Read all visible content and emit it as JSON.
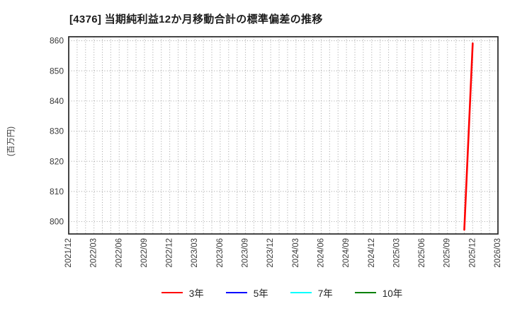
{
  "chart_data": {
    "type": "line",
    "title": "[4376]  当期純利益12か月移動合計の標準偏差の推移",
    "ylabel": "(百万円)",
    "xlim_months": [
      "2021/12",
      "2026/03"
    ],
    "x_tick_labels": [
      "2021/12",
      "2022/03",
      "2022/06",
      "2022/09",
      "2022/12",
      "2023/03",
      "2023/06",
      "2023/09",
      "2023/12",
      "2024/03",
      "2024/06",
      "2024/09",
      "2024/12",
      "2025/03",
      "2025/06",
      "2025/09",
      "2025/12",
      "2026/03"
    ],
    "y_ticks": [
      800,
      810,
      820,
      830,
      840,
      850,
      860
    ],
    "ylim": [
      795.9,
      861.3
    ],
    "grid": {
      "style": "dotted",
      "vertical_interval": "monthly",
      "horizontal_interval": 10,
      "color": "#a9a9a9"
    },
    "legend_position": "bottom",
    "series": [
      {
        "name": "3年",
        "color": "#ff0000",
        "points": [
          {
            "x": "2025/11",
            "y": 797.3
          },
          {
            "x": "2025/12",
            "y": 859.1
          }
        ]
      },
      {
        "name": "5年",
        "color": "#0000ff",
        "points": []
      },
      {
        "name": "7年",
        "color": "#00ffff",
        "points": []
      },
      {
        "name": "10年",
        "color": "#008000",
        "points": []
      }
    ]
  }
}
